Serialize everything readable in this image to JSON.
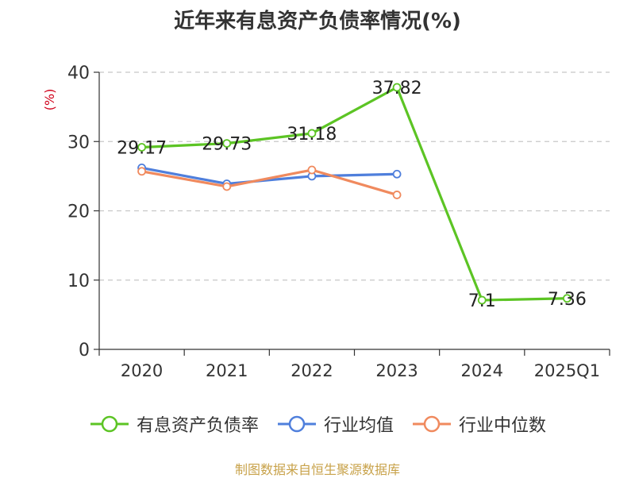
{
  "title": "近年来有息资产负债率情况(%)",
  "source": "制图数据来自恒生聚源数据库",
  "chart_data": {
    "type": "line",
    "ylabel": "(%)",
    "ylim": [
      0,
      40
    ],
    "yticks": [
      0,
      10,
      20,
      30,
      40
    ],
    "grid": true,
    "legend_position": "bottom",
    "categories": [
      "2020",
      "2021",
      "2022",
      "2023",
      "2024",
      "2025Q1"
    ],
    "series": [
      {
        "name": "有息资产负债率",
        "color": "#5cc424",
        "values": [
          29.17,
          29.73,
          31.18,
          37.82,
          7.1,
          7.36
        ],
        "labels": [
          "29.17",
          "29.73",
          "31.18",
          "37.82",
          "7.1",
          "7.36"
        ]
      },
      {
        "name": "行业均值",
        "color": "#4f7fdc",
        "values": [
          26.2,
          23.9,
          25.0,
          25.3,
          null,
          null
        ]
      },
      {
        "name": "行业中位数",
        "color": "#f08a5e",
        "values": [
          25.7,
          23.5,
          25.9,
          22.3,
          null,
          null
        ]
      }
    ]
  }
}
